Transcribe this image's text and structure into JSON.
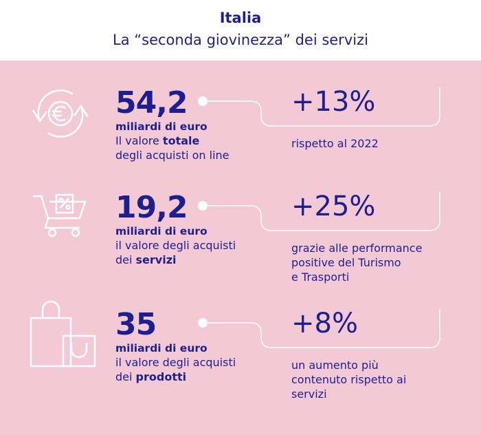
{
  "header": {
    "title": "Italia",
    "subtitle": "La “seconda giovinezza” dei servizi"
  },
  "items": [
    {
      "value": "54,2",
      "unit": "miliardi di euro",
      "description": [
        [
          {
            "text": "Il valore "
          },
          {
            "text": "totale",
            "bold": true
          }
        ],
        [
          {
            "text": "degli acquisti on line"
          }
        ]
      ],
      "change": "+13%",
      "note": [
        "rispetto al 2022"
      ]
    },
    {
      "value": "19,2",
      "unit": "miliardi di euro",
      "description": [
        [
          {
            "text": "il valore degli acquisti"
          }
        ],
        [
          {
            "text": "dei "
          },
          {
            "text": "servizi",
            "bold": true
          }
        ]
      ],
      "change": "+25%",
      "note": [
        "grazie alle performance",
        "positive del Turismo",
        "e Trasporti"
      ]
    },
    {
      "value": "35",
      "unit": "miliardi di euro",
      "description": [
        [
          {
            "text": "il valore degli acquisti"
          }
        ],
        [
          {
            "text": "dei "
          },
          {
            "text": "prodotti",
            "bold": true
          }
        ]
      ],
      "change": "+8%",
      "note": [
        "un aumento più",
        "contenuto rispetto ai",
        "servizi"
      ]
    }
  ]
}
